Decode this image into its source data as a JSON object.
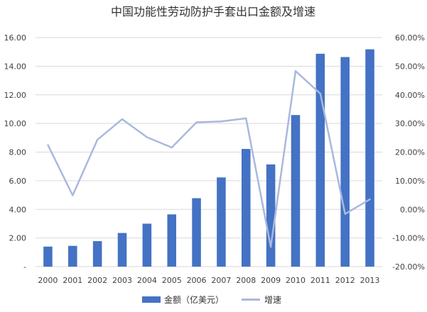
{
  "chart_data": {
    "type": "bar",
    "title": "中国功能性劳动防护手套出口金额及增速",
    "categories": [
      "2000",
      "2001",
      "2002",
      "2003",
      "2004",
      "2005",
      "2006",
      "2007",
      "2008",
      "2009",
      "2010",
      "2011",
      "2012",
      "2013"
    ],
    "series": [
      {
        "name": "金额（亿美元）",
        "type": "bar",
        "axis": "left",
        "color": "#4472C4",
        "values": [
          1.4,
          1.45,
          1.78,
          2.35,
          3.0,
          3.65,
          4.78,
          6.23,
          8.22,
          7.14,
          10.59,
          14.87,
          14.64,
          15.18
        ]
      },
      {
        "name": "增速",
        "type": "line",
        "axis": "right",
        "color": "#A9B8DE",
        "values": [
          22.5,
          4.9,
          24.3,
          31.5,
          25.2,
          21.6,
          30.4,
          30.7,
          31.8,
          -13.1,
          48.3,
          40.4,
          -1.6,
          3.5
        ]
      }
    ],
    "y_left": {
      "ylim": [
        0,
        16
      ],
      "ticks": [
        "-",
        "2.00",
        "4.00",
        "6.00",
        "8.00",
        "10.00",
        "12.00",
        "14.00",
        "16.00"
      ]
    },
    "y_right": {
      "ylim": [
        -20,
        60
      ],
      "ticks": [
        "-20.00%",
        "-10.00%",
        "0.00%",
        "10.00%",
        "20.00%",
        "30.00%",
        "40.00%",
        "50.00%",
        "60.00%"
      ]
    },
    "grid": true,
    "legend_position": "bottom"
  }
}
